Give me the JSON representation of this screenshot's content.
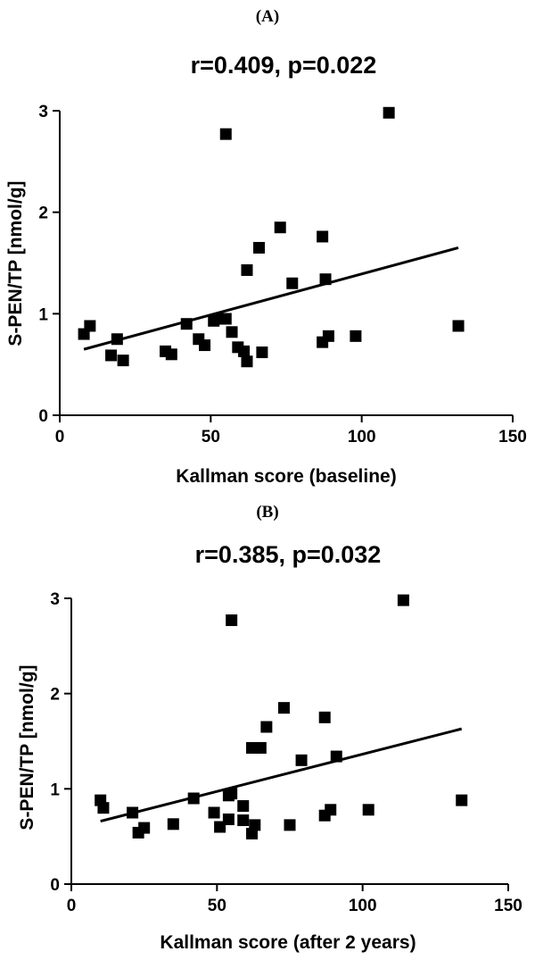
{
  "figure": {
    "panels": [
      {
        "label": "(A)",
        "title": "r=0.409, p=0.022",
        "xlabel": "Kallman score (baseline)",
        "ylabel": "S-PEN/TP [nmol/g]"
      },
      {
        "label": "(B)",
        "title": "r=0.385, p=0.032",
        "xlabel": "Kallman score (after 2 years)",
        "ylabel": "S-PEN/TP [nmol/g]"
      }
    ]
  },
  "chart_data": [
    {
      "type": "scatter",
      "title": "r=0.409, p=0.022",
      "xlabel": "Kallman score (baseline)",
      "ylabel": "S-PEN/TP [nmol/g]",
      "xlim": [
        0,
        150
      ],
      "ylim": [
        0,
        3
      ],
      "xticks": [
        0,
        50,
        100,
        150
      ],
      "yticks": [
        0,
        1,
        2,
        3
      ],
      "grid": false,
      "points": [
        [
          8,
          0.8
        ],
        [
          10,
          0.88
        ],
        [
          17,
          0.59
        ],
        [
          19,
          0.75
        ],
        [
          21,
          0.54
        ],
        [
          35,
          0.63
        ],
        [
          37,
          0.6
        ],
        [
          42,
          0.9
        ],
        [
          46,
          0.75
        ],
        [
          48,
          0.69
        ],
        [
          51,
          0.93
        ],
        [
          53,
          0.95
        ],
        [
          55,
          0.95
        ],
        [
          57,
          0.82
        ],
        [
          59,
          0.67
        ],
        [
          55,
          2.77
        ],
        [
          61,
          0.63
        ],
        [
          62,
          0.53
        ],
        [
          62,
          1.43
        ],
        [
          66,
          1.65
        ],
        [
          67,
          0.62
        ],
        [
          73,
          1.85
        ],
        [
          77,
          1.3
        ],
        [
          87,
          1.76
        ],
        [
          87,
          0.72
        ],
        [
          88,
          1.34
        ],
        [
          89,
          0.78
        ],
        [
          98,
          0.78
        ],
        [
          109,
          2.98
        ],
        [
          132,
          0.88
        ]
      ],
      "fit_line": {
        "x": [
          8,
          132
        ],
        "y": [
          0.65,
          1.65
        ]
      }
    },
    {
      "type": "scatter",
      "title": "r=0.385, p=0.032",
      "xlabel": "Kallman score (after 2 years)",
      "ylabel": "S-PEN/TP [nmol/g]",
      "xlim": [
        0,
        150
      ],
      "ylim": [
        0,
        3
      ],
      "xticks": [
        0,
        50,
        100,
        150
      ],
      "yticks": [
        0,
        1,
        2,
        3
      ],
      "grid": false,
      "points": [
        [
          10,
          0.88
        ],
        [
          11,
          0.8
        ],
        [
          21,
          0.75
        ],
        [
          23,
          0.54
        ],
        [
          25,
          0.59
        ],
        [
          35,
          0.63
        ],
        [
          42,
          0.9
        ],
        [
          49,
          0.75
        ],
        [
          51,
          0.6
        ],
        [
          54,
          0.68
        ],
        [
          54,
          0.93
        ],
        [
          55,
          0.95
        ],
        [
          55,
          2.77
        ],
        [
          59,
          0.82
        ],
        [
          59,
          0.67
        ],
        [
          62,
          0.53
        ],
        [
          62,
          1.43
        ],
        [
          63,
          0.62
        ],
        [
          65,
          1.43
        ],
        [
          67,
          1.65
        ],
        [
          73,
          1.85
        ],
        [
          75,
          0.62
        ],
        [
          79,
          1.3
        ],
        [
          87,
          1.75
        ],
        [
          87,
          0.72
        ],
        [
          89,
          0.78
        ],
        [
          91,
          1.34
        ],
        [
          102,
          0.78
        ],
        [
          114,
          2.98
        ],
        [
          134,
          0.88
        ]
      ],
      "fit_line": {
        "x": [
          10,
          134
        ],
        "y": [
          0.66,
          1.63
        ]
      }
    }
  ]
}
